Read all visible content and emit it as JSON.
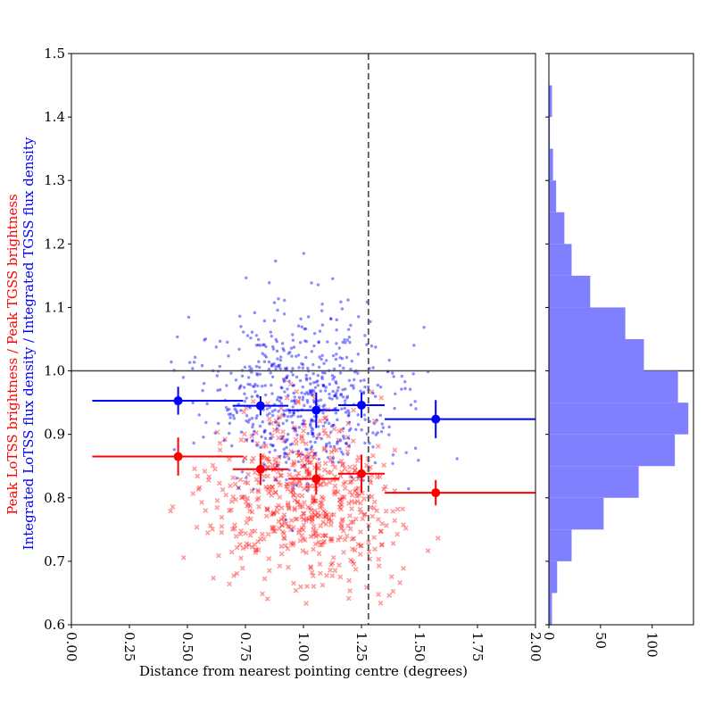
{
  "chart_data": [
    {
      "type": "scatter",
      "xlabel": "Distance from nearest pointing centre (degrees)",
      "ylabel_parts": [
        {
          "text": "Peak LoTSS brightness / Peak TGSS brightness",
          "color": "#ff0000"
        },
        {
          "text": "Integrated LoTSS flux density / Integrated TGSS flux density",
          "color": "#0000ff"
        }
      ],
      "xlim": [
        0.0,
        2.0
      ],
      "ylim": [
        0.6,
        1.5
      ],
      "x_tick_labels": [
        "0.00",
        "0.25",
        "0.50",
        "0.75",
        "1.00",
        "1.25",
        "1.50",
        "1.75",
        "2.00"
      ],
      "y_tick_labels": [
        "0.6",
        "0.7",
        "0.8",
        "0.9",
        "1.0",
        "1.1",
        "1.2",
        "1.3",
        "1.4",
        "1.5"
      ],
      "reference_lines": {
        "horizontal_y": 1.0,
        "vertical_x_dashed": 1.28
      },
      "series": [
        {
          "color": "#ff0000",
          "marker": "x",
          "scatter_center": [
            1.0,
            0.8
          ],
          "scatter_spread": [
            0.42,
            0.13
          ],
          "binned_points": [
            {
              "x": 0.46,
              "y": 0.865,
              "xerr": [
                0.37,
                0.28
              ],
              "yerr": 0.03
            },
            {
              "x": 0.815,
              "y": 0.845,
              "xerr": [
                0.12,
                0.12
              ],
              "yerr": 0.025
            },
            {
              "x": 1.055,
              "y": 0.83,
              "xerr": [
                0.12,
                0.1
              ],
              "yerr": 0.025
            },
            {
              "x": 1.25,
              "y": 0.838,
              "xerr": [
                0.1,
                0.1
              ],
              "yerr": 0.03
            },
            {
              "x": 1.57,
              "y": 0.808,
              "xerr": [
                0.22,
                0.43
              ],
              "yerr": 0.02
            }
          ]
        },
        {
          "color": "#0000ff",
          "marker": "dot",
          "scatter_center": [
            1.0,
            0.96
          ],
          "scatter_spread": [
            0.42,
            0.14
          ],
          "binned_points": [
            {
              "x": 0.46,
              "y": 0.953,
              "xerr": [
                0.37,
                0.28
              ],
              "yerr": 0.022
            },
            {
              "x": 0.815,
              "y": 0.945,
              "xerr": [
                0.12,
                0.12
              ],
              "yerr": 0.015
            },
            {
              "x": 1.055,
              "y": 0.938,
              "xerr": [
                0.12,
                0.1
              ],
              "yerr": 0.028
            },
            {
              "x": 1.25,
              "y": 0.946,
              "xerr": [
                0.1,
                0.1
              ],
              "yerr": 0.02
            },
            {
              "x": 1.57,
              "y": 0.924,
              "xerr": [
                0.22,
                0.43
              ],
              "yerr": 0.03
            }
          ]
        }
      ]
    },
    {
      "type": "bar",
      "orientation": "horizontal",
      "color": "#8080ff",
      "ylim": [
        0.6,
        1.5
      ],
      "xlim": [
        0,
        140
      ],
      "x_tick_labels": [
        "0",
        "50",
        "100"
      ],
      "bins": [
        {
          "y0": 0.6,
          "y1": 0.65,
          "count": 3
        },
        {
          "y0": 0.65,
          "y1": 0.7,
          "count": 8
        },
        {
          "y0": 0.7,
          "y1": 0.75,
          "count": 22
        },
        {
          "y0": 0.75,
          "y1": 0.8,
          "count": 53
        },
        {
          "y0": 0.8,
          "y1": 0.85,
          "count": 87
        },
        {
          "y0": 0.85,
          "y1": 0.9,
          "count": 122
        },
        {
          "y0": 0.9,
          "y1": 0.95,
          "count": 135
        },
        {
          "y0": 0.95,
          "y1": 1.0,
          "count": 125
        },
        {
          "y0": 1.0,
          "y1": 1.05,
          "count": 92
        },
        {
          "y0": 1.05,
          "y1": 1.1,
          "count": 74
        },
        {
          "y0": 1.1,
          "y1": 1.15,
          "count": 40
        },
        {
          "y0": 1.15,
          "y1": 1.2,
          "count": 22
        },
        {
          "y0": 1.2,
          "y1": 1.25,
          "count": 15
        },
        {
          "y0": 1.25,
          "y1": 1.3,
          "count": 7
        },
        {
          "y0": 1.3,
          "y1": 1.35,
          "count": 4
        },
        {
          "y0": 1.35,
          "y1": 1.4,
          "count": 1
        },
        {
          "y0": 1.4,
          "y1": 1.45,
          "count": 3
        },
        {
          "y0": 1.45,
          "y1": 1.5,
          "count": 0
        }
      ]
    }
  ]
}
